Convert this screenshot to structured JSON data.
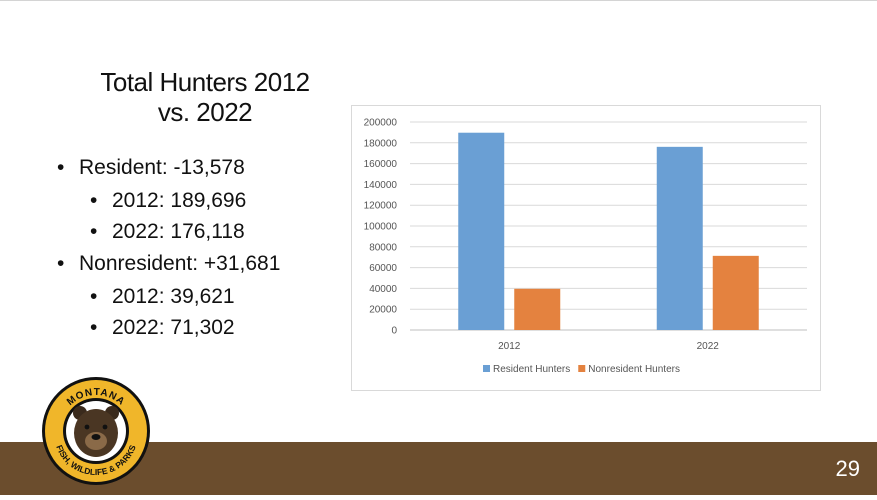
{
  "slide": {
    "title_line1": "Total Hunters 2012",
    "title_line2": "vs. 2022",
    "bullets": [
      {
        "text": "Resident:  -13,578"
      },
      {
        "text": "2012: 189,696"
      },
      {
        "text": "2022: 176,118"
      },
      {
        "text": "Nonresident:  +31,681"
      },
      {
        "text": "2012: 39,621"
      },
      {
        "text": "2022: 71,302"
      }
    ],
    "slide_number": "29",
    "logo": {
      "top_text": "MONTANA",
      "bottom_text": "FISH, WILDLIFE & PARKS"
    }
  },
  "colors": {
    "resident": "#6a9fd4",
    "nonresident": "#e4823f",
    "footer": "#6b4d2d",
    "logo_ring": "#f0b62a"
  },
  "chart_data": {
    "type": "bar",
    "categories": [
      "2012",
      "2022"
    ],
    "series": [
      {
        "name": "Resident Hunters",
        "values": [
          189696,
          176118
        ]
      },
      {
        "name": "Nonresident Hunters",
        "values": [
          39621,
          71302
        ]
      }
    ],
    "y_ticks": [
      "200000",
      "180000",
      "160000",
      "140000",
      "120000",
      "100000",
      "80000",
      "60000",
      "40000",
      "20000",
      "0"
    ],
    "ylim": [
      0,
      200000
    ],
    "grid": true,
    "legend_position": "bottom"
  }
}
